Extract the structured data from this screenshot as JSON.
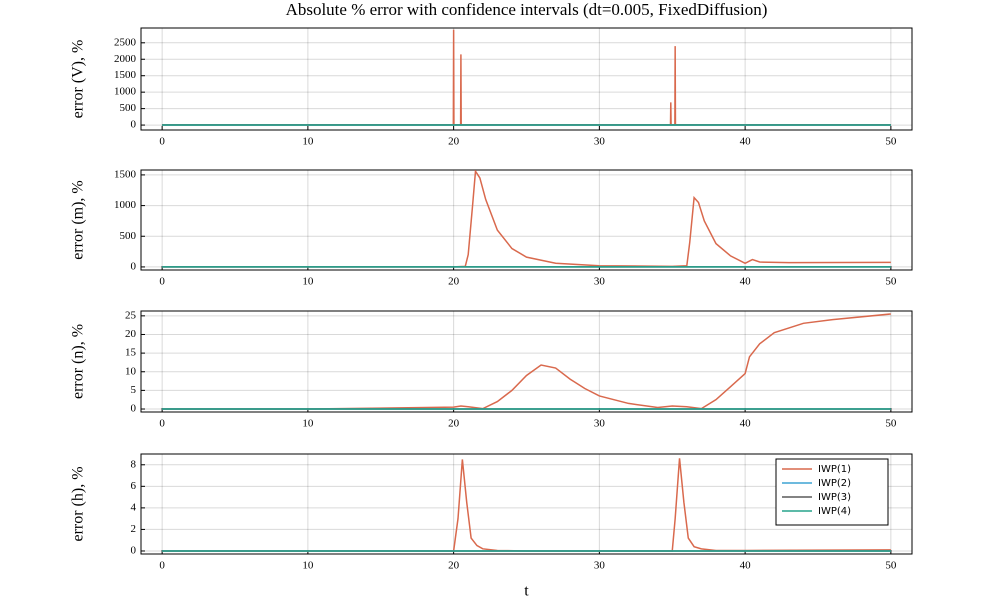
{
  "chart_data": [
    {
      "type": "line",
      "title": "Absolute % error with confidence intervals (dt=0.005, FixedDiffusion)",
      "y_label": "error (V), %",
      "x": [
        0,
        10,
        19.98,
        20,
        20.02,
        20.48,
        20.5,
        20.52,
        30,
        34.88,
        34.9,
        34.92,
        35.18,
        35.2,
        35.22,
        50
      ],
      "series": [
        {
          "name": "IWP(1)",
          "color": "#d9694d",
          "values": [
            10,
            10,
            10,
            2900,
            10,
            10,
            2150,
            10,
            10,
            10,
            690,
            10,
            10,
            2400,
            10,
            10
          ]
        },
        {
          "name": "IWP(2)",
          "color": "#3da4d4",
          "values": [
            0,
            0,
            0,
            0,
            0,
            0,
            0,
            0,
            0,
            0,
            0,
            0,
            0,
            0,
            0,
            0
          ]
        },
        {
          "name": "IWP(3)",
          "color": "#5a5a5a",
          "values": [
            0,
            0,
            0,
            0,
            0,
            0,
            0,
            0,
            0,
            0,
            0,
            0,
            0,
            0,
            0,
            0
          ]
        },
        {
          "name": "IWP(4)",
          "color": "#27a38b",
          "values": [
            0,
            0,
            0,
            0,
            0,
            0,
            0,
            0,
            0,
            0,
            0,
            0,
            0,
            0,
            0,
            0
          ]
        }
      ],
      "xlim": [
        -1.45,
        51.45
      ],
      "xticks": [
        0,
        10,
        20,
        30,
        40,
        50
      ],
      "ylim": [
        -150,
        2950
      ],
      "yticks": [
        0,
        500,
        1000,
        1500,
        2000,
        2500
      ],
      "grid": true,
      "legend": false
    },
    {
      "type": "line",
      "y_label": "error (m), %",
      "x": [
        0,
        10,
        20,
        20.8,
        21,
        21.3,
        21.5,
        21.8,
        22.2,
        23,
        24,
        25,
        27,
        30,
        35,
        36,
        36.2,
        36.5,
        36.8,
        37.2,
        38,
        39,
        40,
        40.5,
        41,
        43,
        50
      ],
      "series": [
        {
          "name": "IWP(1)",
          "color": "#d9694d",
          "values": [
            0,
            0,
            0,
            10,
            200,
            1000,
            1560,
            1450,
            1100,
            600,
            300,
            160,
            60,
            20,
            10,
            20,
            400,
            1130,
            1050,
            750,
            380,
            180,
            60,
            120,
            80,
            70,
            75
          ]
        },
        {
          "name": "IWP(2)",
          "color": "#3da4d4",
          "values": [
            0,
            0,
            0,
            0,
            0,
            0,
            0,
            0,
            0,
            0,
            0,
            0,
            0,
            0,
            0,
            0,
            0,
            0,
            0,
            0,
            0,
            0,
            0,
            0,
            0,
            0,
            0
          ]
        },
        {
          "name": "IWP(3)",
          "color": "#5a5a5a",
          "values": [
            0,
            0,
            0,
            0,
            0,
            0,
            0,
            0,
            0,
            0,
            0,
            0,
            0,
            0,
            0,
            0,
            0,
            0,
            0,
            0,
            0,
            0,
            0,
            0,
            0,
            0,
            0
          ]
        },
        {
          "name": "IWP(4)",
          "color": "#27a38b",
          "values": [
            0,
            0,
            0,
            0,
            0,
            0,
            0,
            0,
            0,
            0,
            0,
            0,
            0,
            0,
            0,
            0,
            0,
            0,
            0,
            0,
            0,
            0,
            0,
            0,
            0,
            0,
            0
          ]
        }
      ],
      "xlim": [
        -1.45,
        51.45
      ],
      "xticks": [
        0,
        10,
        20,
        30,
        40,
        50
      ],
      "ylim": [
        -50,
        1580
      ],
      "yticks": [
        0,
        500,
        1000,
        1500
      ],
      "grid": true,
      "legend": false
    },
    {
      "type": "line",
      "y_label": "error (n), %",
      "x": [
        0,
        10,
        20,
        20.5,
        21,
        22,
        23,
        24,
        25,
        26,
        27,
        28,
        29,
        30,
        32,
        34,
        35,
        36,
        37,
        38,
        39,
        40,
        40.3,
        41,
        42,
        44,
        46,
        50
      ],
      "series": [
        {
          "name": "IWP(1)",
          "color": "#d9694d",
          "values": [
            0,
            0,
            0.5,
            0.8,
            0.6,
            0.1,
            2,
            5,
            9,
            11.8,
            11,
            8,
            5.5,
            3.5,
            1.5,
            0.4,
            0.8,
            0.6,
            0.1,
            2.5,
            6,
            9.5,
            14,
            17.5,
            20.5,
            23,
            24,
            25.5
          ]
        },
        {
          "name": "IWP(2)",
          "color": "#3da4d4",
          "values": [
            0,
            0,
            0,
            0,
            0,
            0,
            0,
            0,
            0,
            0,
            0,
            0,
            0,
            0,
            0,
            0,
            0,
            0,
            0,
            0,
            0,
            0,
            0,
            0,
            0,
            0,
            0,
            0
          ]
        },
        {
          "name": "IWP(3)",
          "color": "#5a5a5a",
          "values": [
            0,
            0,
            0,
            0,
            0,
            0,
            0,
            0,
            0,
            0,
            0,
            0,
            0,
            0,
            0,
            0,
            0,
            0,
            0,
            0,
            0,
            0,
            0,
            0,
            0,
            0,
            0,
            0
          ]
        },
        {
          "name": "IWP(4)",
          "color": "#27a38b",
          "values": [
            0,
            0,
            0,
            0,
            0,
            0,
            0,
            0,
            0,
            0,
            0,
            0,
            0,
            0,
            0,
            0,
            0,
            0,
            0,
            0,
            0,
            0,
            0,
            0,
            0,
            0,
            0,
            0
          ]
        }
      ],
      "xlim": [
        -1.45,
        51.45
      ],
      "xticks": [
        0,
        10,
        20,
        30,
        40,
        50
      ],
      "ylim": [
        -0.8,
        26.3
      ],
      "yticks": [
        0,
        5,
        10,
        15,
        20,
        25
      ],
      "grid": true,
      "legend": false
    },
    {
      "type": "line",
      "y_label": "error (h), %",
      "x_label": "t",
      "x": [
        0,
        10,
        20,
        20.3,
        20.6,
        20.9,
        21.2,
        21.6,
        22,
        23,
        25,
        34,
        35,
        35.2,
        35.5,
        35.8,
        36.1,
        36.5,
        37,
        38,
        40,
        50
      ],
      "series": [
        {
          "name": "IWP(1)",
          "color": "#d9694d",
          "values": [
            0,
            0,
            0,
            3,
            8.5,
            4.5,
            1.2,
            0.5,
            0.2,
            0.05,
            0,
            0,
            0,
            3,
            8.6,
            4.5,
            1.2,
            0.4,
            0.2,
            0.05,
            0.05,
            0.1
          ]
        },
        {
          "name": "IWP(2)",
          "color": "#3da4d4",
          "values": [
            0,
            0,
            0,
            0,
            0,
            0,
            0,
            0,
            0,
            0,
            0,
            0,
            0,
            0,
            0,
            0,
            0,
            0,
            0,
            0,
            0,
            0
          ]
        },
        {
          "name": "IWP(3)",
          "color": "#5a5a5a",
          "values": [
            0,
            0,
            0,
            0,
            0,
            0,
            0,
            0,
            0,
            0,
            0,
            0,
            0,
            0,
            0,
            0,
            0,
            0,
            0,
            0,
            0,
            0
          ]
        },
        {
          "name": "IWP(4)",
          "color": "#27a38b",
          "values": [
            0,
            0,
            0,
            0,
            0,
            0,
            0,
            0,
            0,
            0,
            0,
            0,
            0,
            0,
            0,
            0,
            0,
            0,
            0,
            0,
            0,
            0
          ]
        }
      ],
      "xlim": [
        -1.45,
        51.45
      ],
      "xticks": [
        0,
        10,
        20,
        30,
        40,
        50
      ],
      "ylim": [
        -0.28,
        9.0
      ],
      "yticks": [
        0,
        2,
        4,
        6,
        8
      ],
      "grid": true,
      "legend": "top right"
    }
  ]
}
